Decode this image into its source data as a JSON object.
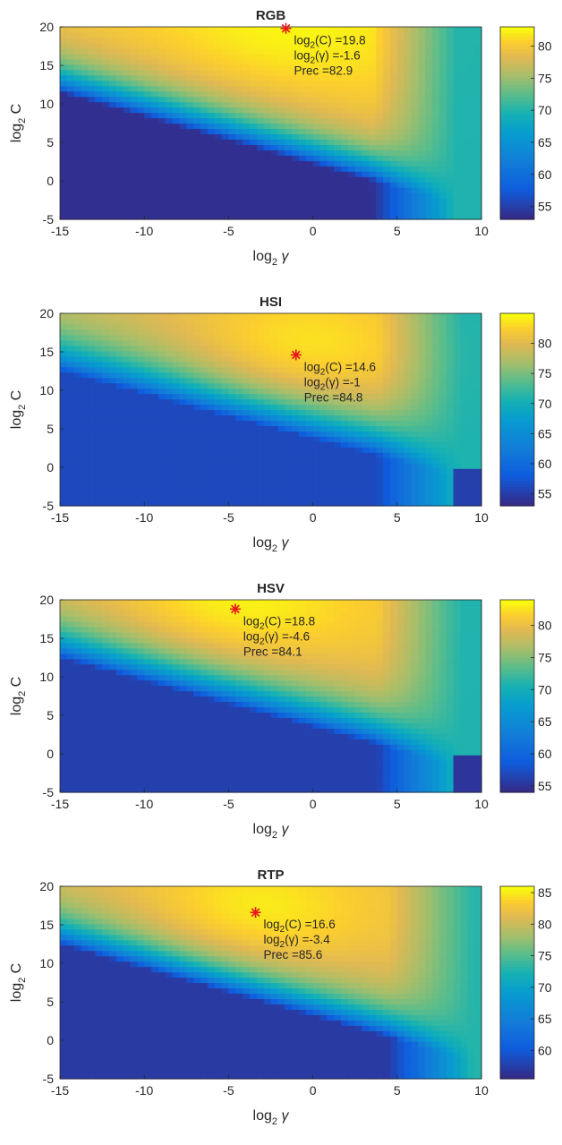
{
  "chart_data": [
    {
      "type": "heatmap",
      "title": "RGB",
      "xlabel": "log2 γ",
      "ylabel": "log2 C",
      "xlim": [
        -15,
        10
      ],
      "ylim": [
        -5,
        20
      ],
      "xticks": [
        "-15",
        "-10",
        "-5",
        "0",
        "5",
        "10"
      ],
      "yticks": [
        "-5",
        "0",
        "5",
        "10",
        "15",
        "20"
      ],
      "colorbar_ticks": [
        "55",
        "60",
        "65",
        "70",
        "75",
        "80"
      ],
      "clim": [
        53,
        83
      ],
      "best": {
        "x": -1.6,
        "y": 19.8
      },
      "annotation": [
        "log2(C) =19.8",
        "log2(γ) =-1.6",
        "Prec =82.9"
      ],
      "model": {
        "base": 53.5,
        "plateau": 81,
        "peak": 82.9,
        "edge_yint": 11.5,
        "slope": 0.62,
        "width": 3.2,
        "ridge_x": 6.5,
        "right_floor": 70,
        "corner_low": false
      }
    },
    {
      "type": "heatmap",
      "title": "HSI",
      "xlabel": "log2 γ",
      "ylabel": "log2 C",
      "xlim": [
        -15,
        10
      ],
      "ylim": [
        -5,
        20
      ],
      "xticks": [
        "-15",
        "-10",
        "-5",
        "0",
        "5",
        "10"
      ],
      "yticks": [
        "-5",
        "0",
        "5",
        "10",
        "15",
        "20"
      ],
      "colorbar_ticks": [
        "55",
        "60",
        "65",
        "70",
        "75",
        "80"
      ],
      "clim": [
        53,
        85
      ],
      "best": {
        "x": -1,
        "y": 14.6
      },
      "annotation": [
        "log2(C) =14.6",
        "log2(γ) =-1",
        "Prec =84.8"
      ],
      "model": {
        "base": 56,
        "plateau": 81,
        "peak": 84.8,
        "edge_yint": 12.5,
        "slope": 0.58,
        "width": 3.8,
        "ridge_x": 6.8,
        "right_floor": 71,
        "corner_low": true
      }
    },
    {
      "type": "heatmap",
      "title": "HSV",
      "xlabel": "log2 γ",
      "ylabel": "log2 C",
      "xlim": [
        -15,
        10
      ],
      "ylim": [
        -5,
        20
      ],
      "xticks": [
        "-15",
        "-10",
        "-5",
        "0",
        "5",
        "10"
      ],
      "yticks": [
        "-5",
        "0",
        "5",
        "10",
        "15",
        "20"
      ],
      "colorbar_ticks": [
        "55",
        "60",
        "65",
        "70",
        "75",
        "80"
      ],
      "clim": [
        54,
        84
      ],
      "best": {
        "x": -4.6,
        "y": 18.8
      },
      "annotation": [
        "log2(C) =18.8",
        "log2(γ) =-4.6",
        "Prec =84.1"
      ],
      "model": {
        "base": 56,
        "plateau": 81,
        "peak": 84.1,
        "edge_yint": 12.5,
        "slope": 0.6,
        "width": 3.6,
        "ridge_x": 6.8,
        "right_floor": 71,
        "corner_low": true
      }
    },
    {
      "type": "heatmap",
      "title": "RTP",
      "xlabel": "log2 γ",
      "ylabel": "log2 C",
      "xlim": [
        -15,
        10
      ],
      "ylim": [
        -5,
        20
      ],
      "xticks": [
        "-15",
        "-10",
        "-5",
        "0",
        "5",
        "10"
      ],
      "yticks": [
        "-5",
        "0",
        "5",
        "10",
        "15",
        "20"
      ],
      "colorbar_ticks": [
        "60",
        "65",
        "70",
        "75",
        "80",
        "85"
      ],
      "clim": [
        55.5,
        86
      ],
      "best": {
        "x": -3.4,
        "y": 16.6
      },
      "annotation": [
        "log2(C) =16.6",
        "log2(γ) =-3.4",
        "Prec =85.6"
      ],
      "model": {
        "base": 57,
        "plateau": 82,
        "peak": 85.6,
        "edge_yint": 12.5,
        "slope": 0.62,
        "width": 3.0,
        "ridge_x": 7.5,
        "right_floor": 73,
        "corner_low": false
      }
    }
  ],
  "colors": {
    "marker": "#e8141e",
    "axis": "#262626"
  }
}
